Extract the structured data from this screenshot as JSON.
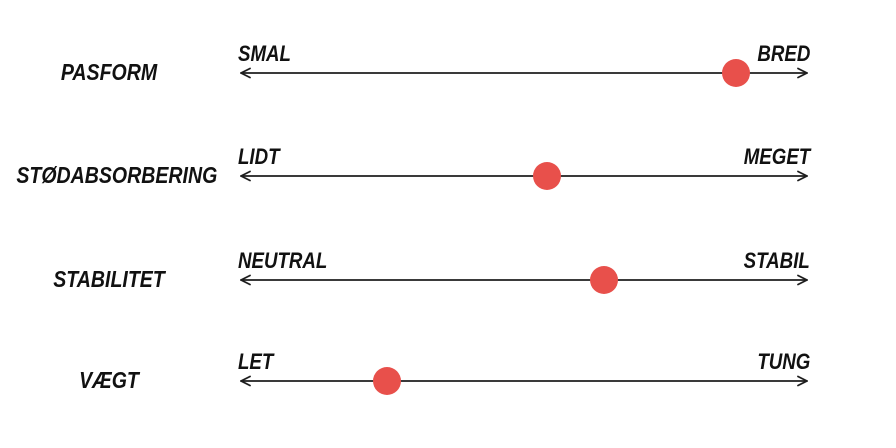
{
  "chart_data": {
    "type": "scatter",
    "subtype": "attribute-dot-scales",
    "rows": [
      {
        "label": "PASFORM",
        "left_end": "SMAL",
        "right_end": "BRED",
        "value": 0.87
      },
      {
        "label": "STØDABSORBERING",
        "left_end": "LIDT",
        "right_end": "MEGET",
        "value": 0.54
      },
      {
        "label": "STABILITET",
        "left_end": "NEUTRAL",
        "right_end": "STABIL",
        "value": 0.64
      },
      {
        "label": "VÆGT",
        "left_end": "LET",
        "right_end": "TUNG",
        "value": 0.26
      }
    ],
    "value_range": [
      0,
      1
    ],
    "colors": {
      "dot": "#e8504b",
      "line": "#1e1e1e",
      "text": "#111111",
      "background": "#ffffff"
    }
  }
}
